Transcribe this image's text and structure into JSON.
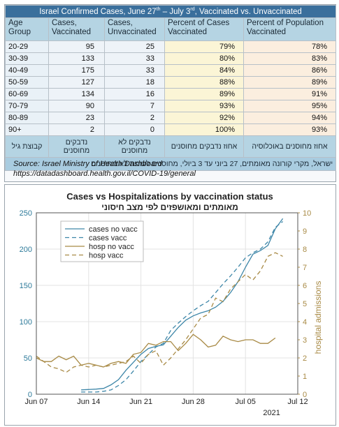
{
  "table": {
    "title": "Israel Confirmed Cases, June 27",
    "title_sup": "th",
    "title_mid": " – July 3",
    "title_sup2": "rd",
    "title_end": ", Vaccinated vs. Unvaccinated",
    "headers": [
      "Age Group",
      "Cases, Vaccinated",
      "Cases, Unvaccinated",
      "Percent of Cases Vaccinated",
      "Percent of Population Vaccinated"
    ],
    "rows": [
      [
        "20-29",
        "95",
        "25",
        "79%",
        "78%"
      ],
      [
        "30-39",
        "133",
        "33",
        "80%",
        "83%"
      ],
      [
        "40-49",
        "175",
        "33",
        "84%",
        "86%"
      ],
      [
        "50-59",
        "127",
        "18",
        "88%",
        "89%"
      ],
      [
        "60-69",
        "134",
        "16",
        "89%",
        "91%"
      ],
      [
        "70-79",
        "90",
        "7",
        "93%",
        "95%"
      ],
      [
        "80-89",
        "23",
        "2",
        "92%",
        "94%"
      ],
      [
        "90+",
        "2",
        "0",
        "100%",
        "93%"
      ]
    ],
    "hebrew_headers": [
      "קבוצת גיל",
      "נדבקים מחוסנים",
      "נדבקים לא מחוסנים",
      "אחוז נדבקים מחוסנים",
      "אחוז מחוסנים באוכלוסיה"
    ],
    "hebrew_note": "ישראל, מקרי קורונה מאומתים, 27 ביוני עד 3 ביולי, מחוסנים לעומת לא מחוסנים",
    "source_line1": "Source: Israel Ministry of Health Dashboard",
    "source_line2": "https://datadashboard.health.gov.il/COVID-19/general"
  },
  "chart_data": {
    "type": "line",
    "title": "Cases vs Hospitalizations by vaccination status",
    "subtitle": "מאומתים ומאושפזים לפי מצב חיסוני",
    "xlabel": "",
    "ylabel": "",
    "y2label": "hospital admissions",
    "x_ticks": [
      "Jun 07",
      "Jun 14",
      "Jun 21",
      "Jun 28",
      "Jul 05",
      "Jul 12"
    ],
    "x_year_label": "2021",
    "xlim": [
      0,
      35
    ],
    "ylim": [
      0,
      250
    ],
    "y_ticks": [
      0,
      50,
      100,
      150,
      200,
      250
    ],
    "y2lim": [
      0,
      10
    ],
    "y2_ticks": [
      0,
      1,
      2,
      3,
      4,
      5,
      6,
      7,
      8,
      9,
      10
    ],
    "grid": true,
    "legend_position": "top-left",
    "series": [
      {
        "name": "cases no vacc",
        "axis": "left",
        "style": "solid",
        "color": "#3d86a8",
        "x": [
          6,
          8,
          9,
          10,
          11,
          12,
          13,
          14,
          15,
          16,
          17,
          18,
          19,
          20,
          21,
          22,
          23,
          24,
          25,
          26,
          27,
          28,
          29,
          30,
          31,
          32,
          33
        ],
        "y": [
          6,
          7,
          8,
          13,
          20,
          33,
          44,
          55,
          63,
          66,
          68,
          80,
          92,
          102,
          108,
          112,
          115,
          120,
          128,
          140,
          155,
          175,
          193,
          198,
          205,
          228,
          242
        ]
      },
      {
        "name": "cases vacc",
        "axis": "left",
        "style": "dashed",
        "color": "#3d86a8",
        "x": [
          6,
          8,
          9,
          10,
          11,
          12,
          13,
          14,
          15,
          16,
          17,
          18,
          19,
          20,
          21,
          22,
          23,
          24,
          25,
          26,
          27,
          28,
          29,
          30,
          31,
          32,
          33
        ],
        "y": [
          3,
          3,
          4,
          6,
          12,
          20,
          32,
          45,
          55,
          65,
          70,
          88,
          98,
          107,
          115,
          122,
          128,
          140,
          152,
          163,
          175,
          188,
          195,
          200,
          210,
          230,
          238
        ]
      },
      {
        "name": "hosp no vacc",
        "axis": "right",
        "style": "solid",
        "color": "#a88a45",
        "x": [
          0,
          1,
          2,
          3,
          4,
          5,
          6,
          7,
          8,
          9,
          10,
          11,
          12,
          13,
          14,
          15,
          16,
          17,
          18,
          19,
          20,
          21,
          22,
          23,
          24,
          25,
          26,
          27,
          28,
          29,
          30,
          31,
          32
        ],
        "y": [
          2,
          1.8,
          1.8,
          2.1,
          1.9,
          2.1,
          1.6,
          1.7,
          1.6,
          1.5,
          1.7,
          1.8,
          1.7,
          2.2,
          2.3,
          2.8,
          2.7,
          2.9,
          2.9,
          2.4,
          2.8,
          3.3,
          3.0,
          2.6,
          2.7,
          3.2,
          3.0,
          2.9,
          3.0,
          3.0,
          2.8,
          2.8,
          3.1
        ]
      },
      {
        "name": "hosp vacc",
        "axis": "right",
        "style": "dashed",
        "color": "#a88a45",
        "x": [
          0,
          1,
          2,
          3,
          4,
          5,
          6,
          7,
          8,
          9,
          10,
          11,
          12,
          13,
          14,
          15,
          16,
          17,
          18,
          19,
          20,
          21,
          22,
          23,
          24,
          25,
          26,
          27,
          28,
          29,
          30,
          31,
          32,
          33
        ],
        "y": [
          2.1,
          1.8,
          1.5,
          1.4,
          1.2,
          1.5,
          1.6,
          1.5,
          1.6,
          1.5,
          1.6,
          1.7,
          1.8,
          2.1,
          1.7,
          2.2,
          2.4,
          1.6,
          2.0,
          2.5,
          3.0,
          3.6,
          4.2,
          4.4,
          5.3,
          5.1,
          5.8,
          6.2,
          6.6,
          6.3,
          6.8,
          7.6,
          7.8,
          7.6
        ]
      }
    ]
  }
}
